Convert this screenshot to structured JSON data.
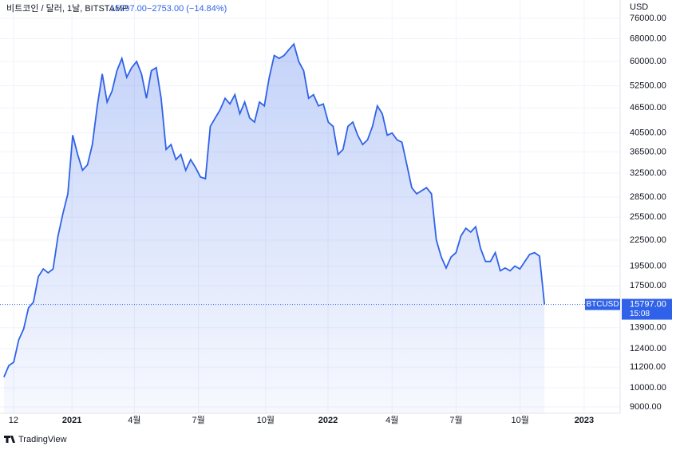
{
  "chart_data": {
    "type": "line",
    "title": "비트코인 / 달러, 1날, BITSTAMP",
    "price_label": "15797.00",
    "change_label": "−2753.00 (−14.84%)",
    "countdown": "15:08",
    "y_axis_label": "USD",
    "brand": "TradingView",
    "log_scale": true,
    "grid": true,
    "area_fill": true,
    "xlim": [
      -0.8,
      125.4
    ],
    "xticks": [
      {
        "value": 1.95,
        "label": "12"
      },
      {
        "value": 13.84,
        "label": "2021"
      },
      {
        "value": 26.55,
        "label": "4월"
      },
      {
        "value": 39.58,
        "label": "7월"
      },
      {
        "value": 53.26,
        "label": "10월"
      },
      {
        "value": 65.96,
        "label": "2022"
      },
      {
        "value": 78.99,
        "label": "4월"
      },
      {
        "value": 92.02,
        "label": "7월"
      },
      {
        "value": 105.05,
        "label": "10월"
      },
      {
        "value": 118.08,
        "label": "2023"
      }
    ],
    "ylim": [
      8690,
      84060
    ],
    "yticks": [
      {
        "value": 9000,
        "label": "9000.00"
      },
      {
        "value": 10000,
        "label": "10000.00"
      },
      {
        "value": 11200,
        "label": "11200.00"
      },
      {
        "value": 12400,
        "label": "12400.00"
      },
      {
        "value": 13900,
        "label": "13900.00"
      },
      {
        "value": 17500,
        "label": "17500.00"
      },
      {
        "value": 19500,
        "label": "19500.00"
      },
      {
        "value": 22500,
        "label": "22500.00"
      },
      {
        "value": 25500,
        "label": "25500.00"
      },
      {
        "value": 28500,
        "label": "28500.00"
      },
      {
        "value": 32500,
        "label": "32500.00"
      },
      {
        "value": 36500,
        "label": "36500.00"
      },
      {
        "value": 40500,
        "label": "40500.00"
      },
      {
        "value": 46500,
        "label": "46500.00"
      },
      {
        "value": 52500,
        "label": "52500.00"
      },
      {
        "value": 60000,
        "label": "60000.00"
      },
      {
        "value": 68000,
        "label": "68000.00"
      },
      {
        "value": 76000,
        "label": "76000.00"
      }
    ],
    "series": [
      {
        "name": "BTCUSD",
        "color": "#2f62e8",
        "values": [
          10600,
          11300,
          11500,
          13000,
          13800,
          15500,
          16000,
          18400,
          19200,
          18800,
          19200,
          23000,
          26000,
          29000,
          40000,
          36000,
          33000,
          34000,
          38000,
          47000,
          56000,
          48000,
          51000,
          57000,
          61000,
          55000,
          58000,
          60000,
          56000,
          49000,
          57000,
          58000,
          49000,
          37000,
          38000,
          35000,
          36000,
          33000,
          35000,
          33500,
          31800,
          31500,
          42000,
          44000,
          46000,
          49000,
          47500,
          50000,
          45000,
          48000,
          44000,
          43000,
          48000,
          47000,
          55000,
          62000,
          61000,
          62000,
          64000,
          66000,
          60000,
          57000,
          49000,
          50000,
          47000,
          47500,
          43000,
          42000,
          36000,
          37000,
          42000,
          43000,
          40000,
          38000,
          39000,
          42000,
          47000,
          45000,
          40000,
          40500,
          39000,
          38500,
          34000,
          30000,
          29000,
          29500,
          30000,
          29000,
          22500,
          20500,
          19300,
          20500,
          21000,
          23000,
          24000,
          23500,
          24200,
          21500,
          20000,
          20000,
          21000,
          19000,
          19300,
          19000,
          19500,
          19200,
          20000,
          20800,
          21000,
          20600,
          15797
        ]
      }
    ]
  }
}
